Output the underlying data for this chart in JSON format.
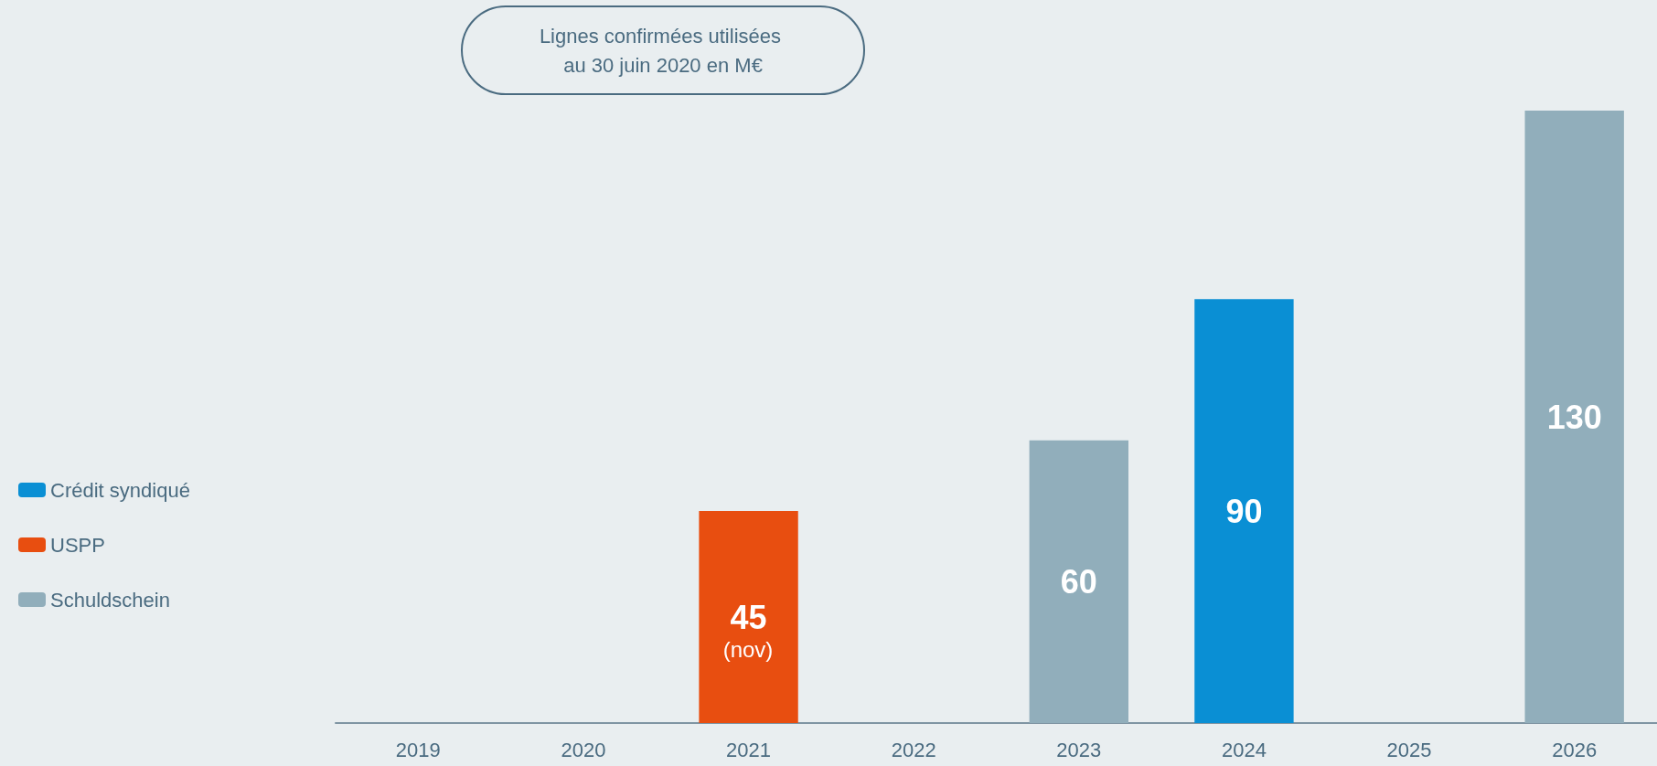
{
  "chart_data": {
    "type": "bar",
    "title": "Lignes confirmées utilisées au 30 juin 2020 en M€",
    "categories": [
      "2019",
      "2020",
      "2021",
      "2022",
      "2023",
      "2024",
      "2025",
      "2026"
    ],
    "series": [
      {
        "name": "Crédit syndiqué",
        "color": "#0a8fd4",
        "values": [
          null,
          null,
          null,
          null,
          null,
          90,
          null,
          null
        ]
      },
      {
        "name": "USPP",
        "color": "#e84e10",
        "values": [
          null,
          null,
          45,
          null,
          null,
          null,
          null,
          null
        ]
      },
      {
        "name": "Schuldschein",
        "color": "#91aebb",
        "values": [
          null,
          null,
          null,
          null,
          60,
          null,
          null,
          130
        ]
      }
    ],
    "stacked": true,
    "data_labels": true,
    "legend": "left",
    "annotations": [
      "(nov)"
    ]
  }
}
